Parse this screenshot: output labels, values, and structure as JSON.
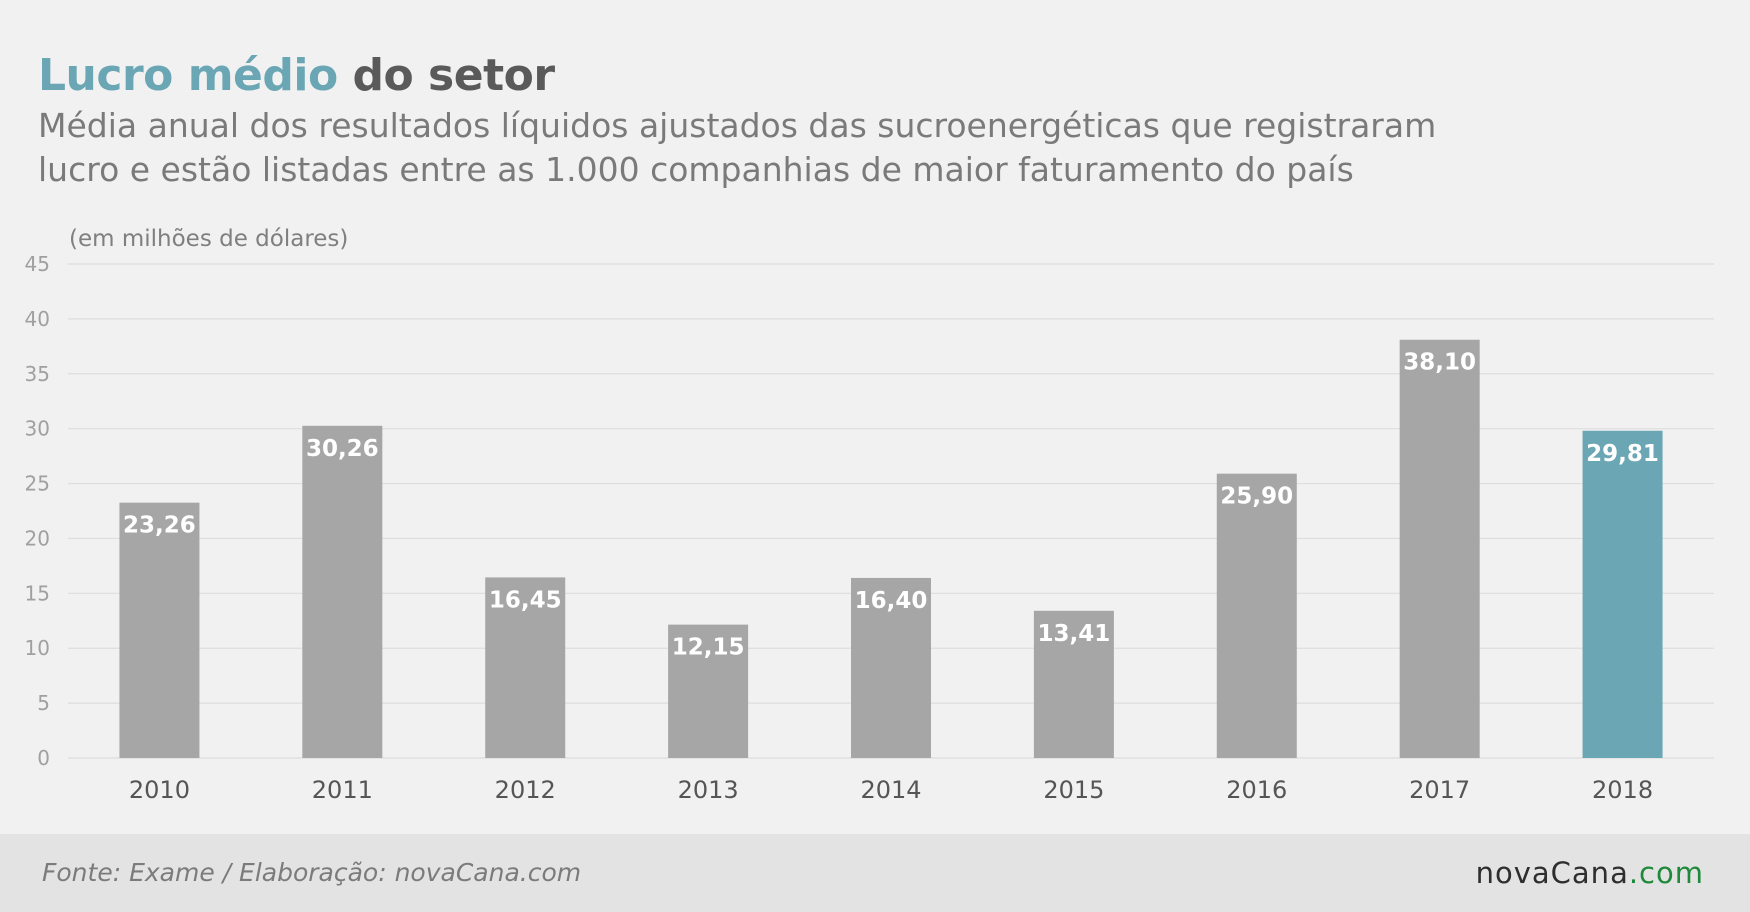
{
  "header": {
    "title_highlight": "Lucro médio",
    "title_rest": "do setor",
    "subtitle_line1": "Média anual dos resultados líquidos ajustados das sucroenergéticas que registraram",
    "subtitle_line2": "lucro e estão listadas entre as 1.000 companhias de maior faturamento do país"
  },
  "footer": {
    "source": "Fonte: Exame / Elaboração: novaCana.com",
    "logo_brand": "novaCana",
    "logo_tld": ".com"
  },
  "colors": {
    "title_highlight": "#6aa6b4",
    "bar_default": "#a6a6a6",
    "bar_highlight": "#6aa6b4",
    "gridline": "#dddddd",
    "logo_tld": "#1f8a3a"
  },
  "chart_data": {
    "type": "bar",
    "title": "Lucro médio do setor",
    "ylabel": "(em milhões de dólares)",
    "xlabel": "",
    "categories": [
      "2010",
      "2011",
      "2012",
      "2013",
      "2014",
      "2015",
      "2016",
      "2017",
      "2018"
    ],
    "values": [
      23.26,
      30.26,
      16.45,
      12.15,
      16.4,
      13.41,
      25.9,
      38.1,
      29.81
    ],
    "value_labels": [
      "23,26",
      "30,26",
      "16,45",
      "12,15",
      "16,40",
      "13,41",
      "25,90",
      "38,10",
      "29,81"
    ],
    "highlight_category": "2018",
    "ylim": [
      0,
      45
    ],
    "yticks": [
      0,
      5,
      10,
      15,
      20,
      25,
      30,
      35,
      40,
      45
    ],
    "grid": true,
    "legend": "none"
  }
}
